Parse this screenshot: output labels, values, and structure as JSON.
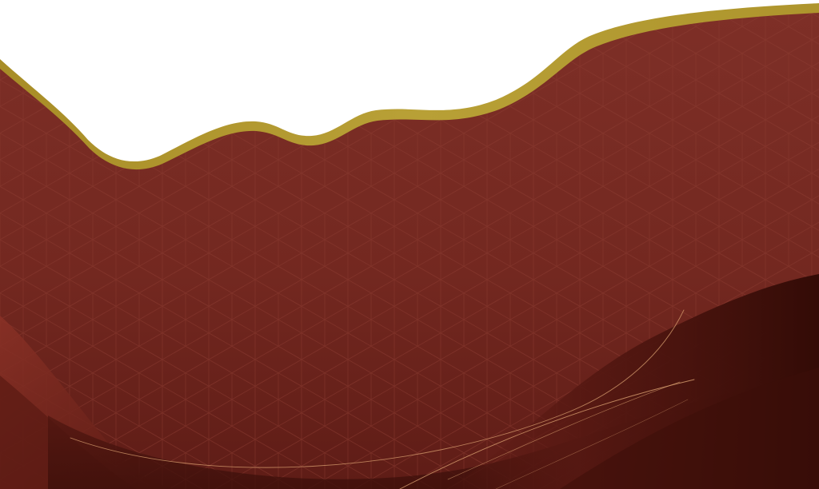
{
  "colors": {
    "background": "#ffffff",
    "maroon_light": "#7b2e26",
    "maroon": "#72271f",
    "maroon_dark": "#5a1a14",
    "maroon_deep": "#3a0d08",
    "gold_band": "#b39a2e",
    "gold_highlight": "#c7ad45",
    "pattern_line": "#8a3a30",
    "thread": "#d9a070"
  },
  "pattern": {
    "name": "asanoha-hemp-leaf"
  },
  "decorations": {
    "band": "gold-wave-band",
    "threads": "gold-thread-lines"
  }
}
